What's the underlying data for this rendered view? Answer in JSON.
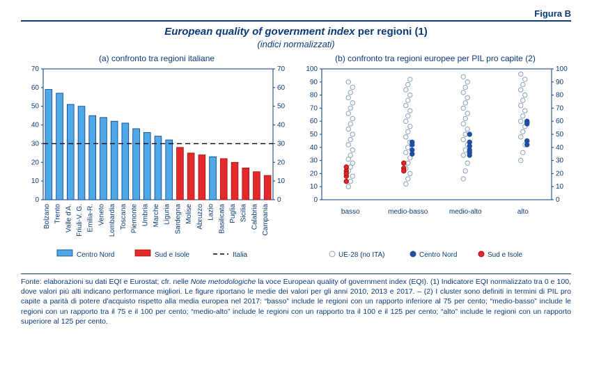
{
  "figure_label": "Figura B",
  "title_italic": "European quality of government index",
  "title_rest": " per regioni (1)",
  "subtitle": "(indici normalizzati)",
  "colors": {
    "text": "#0a3a7a",
    "rule": "#0a3a7a",
    "axis": "#0a3a7a",
    "grid": "none",
    "centro_nord_fill": "#4fa8e8",
    "centro_nord_stroke": "#0a3a7a",
    "sud_fill": "#e32929",
    "sud_stroke": "#a01010",
    "italia_line": "#000000",
    "ue28_fill": "#ffffff",
    "ue28_stroke": "#8aa0b8",
    "marker_cn_fill": "#1f4fa0",
    "marker_si_fill": "#e32929"
  },
  "panel_a": {
    "title": "(a) confronto tra regioni italiane",
    "ylim": [
      0,
      70
    ],
    "ytick_step": 10,
    "italia_line": 30,
    "bar_width": 0.62,
    "label_fontsize": 10,
    "tick_fontsize": 10,
    "bars": [
      {
        "label": "Bolzano",
        "value": 59,
        "group": "cn"
      },
      {
        "label": "Trento",
        "value": 57,
        "group": "cn"
      },
      {
        "label": "Valle d'A.",
        "value": 51,
        "group": "cn"
      },
      {
        "label": "Friuli-V. G.",
        "value": 50,
        "group": "cn"
      },
      {
        "label": "Emilia-R.",
        "value": 45,
        "group": "cn"
      },
      {
        "label": "Veneto",
        "value": 44,
        "group": "cn"
      },
      {
        "label": "Lombardia",
        "value": 42,
        "group": "cn"
      },
      {
        "label": "Toscana",
        "value": 41,
        "group": "cn"
      },
      {
        "label": "Piemonte",
        "value": 38,
        "group": "cn"
      },
      {
        "label": "Umbria",
        "value": 36,
        "group": "cn"
      },
      {
        "label": "Marche",
        "value": 34,
        "group": "cn"
      },
      {
        "label": "Liguria",
        "value": 32,
        "group": "cn"
      },
      {
        "label": "Sardegna",
        "value": 28,
        "group": "si"
      },
      {
        "label": "Molise",
        "value": 25,
        "group": "si"
      },
      {
        "label": "Abruzzo",
        "value": 24,
        "group": "si"
      },
      {
        "label": "Lazio",
        "value": 23,
        "group": "cn"
      },
      {
        "label": "Basilicata",
        "value": 22,
        "group": "si"
      },
      {
        "label": "Puglia",
        "value": 20,
        "group": "si"
      },
      {
        "label": "Sicilia",
        "value": 17,
        "group": "si"
      },
      {
        "label": "Calabria",
        "value": 15,
        "group": "si"
      },
      {
        "label": "Campania",
        "value": 13,
        "group": "si"
      }
    ],
    "legend": [
      {
        "key": "cn",
        "label": "Centro Nord",
        "swatch": "#4fa8e8",
        "border": "#0a3a7a"
      },
      {
        "key": "si",
        "label": "Sud e Isole",
        "swatch": "#e32929",
        "border": "#a01010"
      },
      {
        "key": "it",
        "label": "Italia",
        "dash": true
      }
    ]
  },
  "panel_b": {
    "title": "(b) confronto tra regioni europee per PIL pro capite (2)",
    "ylim": [
      0,
      100
    ],
    "ytick_step": 10,
    "label_fontsize": 10,
    "tick_fontsize": 10,
    "categories": [
      "basso",
      "medio-basso",
      "medio-alto",
      "alto"
    ],
    "marker_radius": 3.2,
    "series": {
      "ue28": {
        "basso": [
          10,
          14,
          18,
          22,
          25,
          28,
          31,
          34,
          38,
          42,
          46,
          50,
          54,
          58,
          62,
          66,
          70,
          74,
          78,
          82,
          86,
          90
        ],
        "medio-basso": [
          12,
          16,
          20,
          24,
          28,
          32,
          36,
          40,
          44,
          48,
          52,
          56,
          60,
          64,
          68,
          72,
          76,
          80,
          84,
          88,
          92
        ],
        "medio-alto": [
          16,
          22,
          28,
          34,
          38,
          42,
          46,
          50,
          54,
          58,
          62,
          66,
          70,
          74,
          78,
          82,
          86,
          90,
          94
        ],
        "alto": [
          30,
          36,
          42,
          48,
          52,
          56,
          60,
          64,
          68,
          72,
          76,
          80,
          84,
          88,
          92,
          96
        ]
      },
      "cn": {
        "basso": [],
        "medio-basso": [
          38,
          42,
          44,
          35
        ],
        "medio-alto": [
          41,
          44,
          34,
          38,
          36,
          50
        ],
        "alto": [
          58,
          45,
          42,
          59,
          60
        ]
      },
      "si": {
        "basso": [
          22,
          18,
          14,
          25,
          20
        ],
        "medio-basso": [
          24,
          28,
          22
        ],
        "medio-alto": [],
        "alto": []
      }
    },
    "legend": [
      {
        "key": "ue28",
        "label": "UE-28 (no ITA)",
        "fill": "#ffffff",
        "stroke": "#8aa0b8"
      },
      {
        "key": "cn",
        "label": "Centro Nord",
        "fill": "#1f4fa0",
        "stroke": "#1f4fa0"
      },
      {
        "key": "si",
        "label": "Sud e Isole",
        "fill": "#e32929",
        "stroke": "#a01010"
      }
    ]
  },
  "footnote": "Fonte: elaborazioni su dati EQI e Eurostat; cfr. nelle Note metodologiche la voce European quality of government index (EQI). (1) Indicatore EQI normalizzato tra 0 e 100, dove valori più alti indicano performance migliori. Le figure riportano le medie dei valori per gli anni 2010, 2013 e 2017. – (2) I cluster sono definiti in termini di PIL pro capite a parità di potere d'acquisto rispetto alla media europea nel 2017: “basso” include le regioni con un rapporto inferiore al 75 per cento; “medio-basso” include le regioni con un rapporto tra il 75 e il 100 per cento; “medio-alto” include le regioni con un rapporto tra il 100 e il 125 per cento; “alto” include le regioni con un rapporto superiore al 125 per cento.",
  "footnote_italic_phrases": [
    "Note metodologiche"
  ]
}
